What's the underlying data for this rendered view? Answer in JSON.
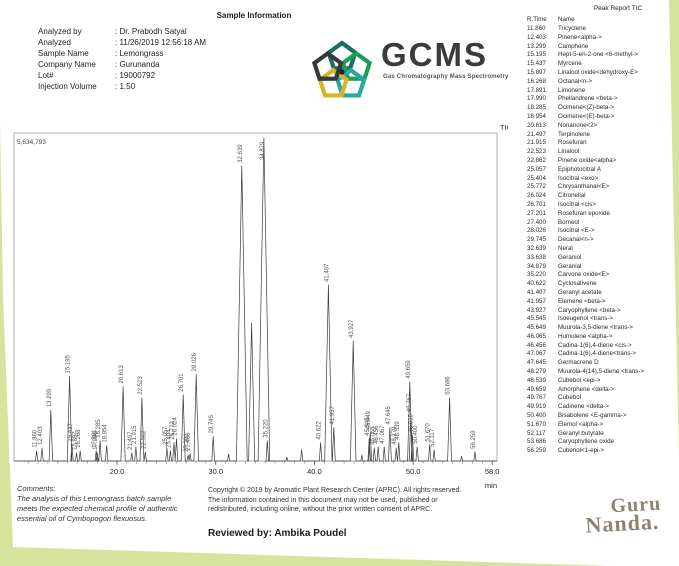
{
  "page": {
    "bg_color": "#d6e39c",
    "paper_color": "#ffffff"
  },
  "sample_info": {
    "title": "Sample Information",
    "fields": [
      {
        "label": "Analyzed by",
        "value": "Dr. Prabodh Satyal"
      },
      {
        "label": "Analyzed",
        "value": "11/26/2019 12:56:18 AM"
      },
      {
        "label": "Sample Name",
        "value": "Lemongrass"
      },
      {
        "label": "Company Name",
        "value": "Gurunanda"
      },
      {
        "label": "Lot#",
        "value": "19000792"
      },
      {
        "label": "Injection Volume",
        "value": "1.50"
      }
    ]
  },
  "gcms_logo": {
    "text": "GCMS",
    "subtitle": "Gas Chromatography Mass Spectrometry",
    "petal_colors": [
      "#1a6f5f",
      "#1f9d58",
      "#2ba7a1",
      "#d8b42c",
      "#35393e"
    ],
    "center_dot_color": "#222222"
  },
  "peak_report": {
    "title": "Peak Report TIC",
    "col_time": "R.Time",
    "col_name": "Name",
    "rows": [
      [
        "11.860",
        "Tricyclene"
      ],
      [
        "12.403",
        "Pinene<alpha->"
      ],
      [
        "13.299",
        "Camphene"
      ],
      [
        "15.195",
        "Hept-5-en-2-one <6-methyl->"
      ],
      [
        "15.437",
        "Myrcene"
      ],
      [
        "15.897",
        "Linalool oxide<dehydroxy-E>"
      ],
      [
        "16.268",
        "Octanal<n->"
      ],
      [
        "17.891",
        "Limonene"
      ],
      [
        "17.990",
        "Phellandrene <beta->"
      ],
      [
        "18.285",
        "Ocimene<(Z)-beta->"
      ],
      [
        "18.954",
        "Ocimene<(E)-beta->"
      ],
      [
        "20.613",
        "Nonanone<2>"
      ],
      [
        "21.497",
        "Terpinolene"
      ],
      [
        "21.915",
        "Rosefuran"
      ],
      [
        "22.523",
        "Linalool"
      ],
      [
        "22.862",
        "Pinene oxide<alpha>"
      ],
      [
        "25.057",
        "Epiphotocitral A"
      ],
      [
        "25.404",
        "Isocitral <exo>"
      ],
      [
        "25.772",
        "Chrysanthanal<E>"
      ],
      [
        "26.024",
        "Citronellal"
      ],
      [
        "26.701",
        "Isocitral <cis>"
      ],
      [
        "27.201",
        "Rosefuran epoxide"
      ],
      [
        "27.400",
        "Borneol"
      ],
      [
        "28.026",
        "Isocitral <E->"
      ],
      [
        "29.745",
        "Decanal<n->"
      ],
      [
        "32.639",
        "Neral"
      ],
      [
        "33.638",
        "Geraniol"
      ],
      [
        "34.879",
        "Geranial"
      ],
      [
        "35.220",
        "Carvone oxide<E>"
      ],
      [
        "40.622",
        "Cyclosativene"
      ],
      [
        "41.407",
        "Geranyl acetate"
      ],
      [
        "41.957",
        "Elemene <beta->"
      ],
      [
        "43.927",
        "Caryophyllene <beta->"
      ],
      [
        "45.545",
        "Isoeugenol <trans->"
      ],
      [
        "45.649",
        "Muurola-3,5-diene <trans->"
      ],
      [
        "46.065",
        "Humulene <alpha->"
      ],
      [
        "46.456",
        "Cadina-1(6),4-diene <cis->"
      ],
      [
        "47.067",
        "Cadina-1(6),4-diene<trans->"
      ],
      [
        "47.645",
        "Germacrene D"
      ],
      [
        "48.279",
        "Muurola-4(14),5-diene <trans->"
      ],
      [
        "48.539",
        "Cubebol <epi->"
      ],
      [
        "49.659",
        "Amorphene <delta->"
      ],
      [
        "49.767",
        "Cubebol"
      ],
      [
        "49.919",
        "Cadinene <delta->"
      ],
      [
        "50.400",
        "Bisabolene <E-gamma->"
      ],
      [
        "51.670",
        "Elemol <alpha->"
      ],
      [
        "52.117",
        "Geranyl butyrate"
      ],
      [
        "53.686",
        "Caryophyllene oxide"
      ],
      [
        "56.259",
        "Cubenol<1-epi->"
      ]
    ]
  },
  "chart_data": {
    "type": "line",
    "title": "TIC",
    "full_scale_label": "5,634,793",
    "full_scale_value": 5634793,
    "xlabel": "min",
    "x_ticks": [
      20.0,
      30.0,
      40.0,
      50.0,
      58.0
    ],
    "x_range": [
      9.6,
      58.0
    ],
    "grid": false,
    "peaks": [
      {
        "rt": 11.86,
        "rel": 0.031,
        "label": "11.860"
      },
      {
        "rt": 12.403,
        "rel": 0.04,
        "label": "12.403"
      },
      {
        "rt": 13.299,
        "rel": 0.155,
        "label": "13.299"
      },
      {
        "rt": 15.195,
        "rel": 0.258,
        "label": "15.195"
      },
      {
        "rt": 15.437,
        "rel": 0.05,
        "label": "15.437"
      },
      {
        "rt": 15.897,
        "rel": 0.025,
        "label": "15.897"
      },
      {
        "rt": 16.268,
        "rel": 0.031,
        "label": "16.268"
      },
      {
        "rt": 17.891,
        "rel": 0.031,
        "label": "17.891"
      },
      {
        "rt": 17.99,
        "rel": 0.025,
        "label": "17.990"
      },
      {
        "rt": 18.285,
        "rel": 0.062,
        "label": "18.285"
      },
      {
        "rt": 18.954,
        "rel": 0.047,
        "label": "18.954"
      },
      {
        "rt": 20.613,
        "rel": 0.227,
        "label": "20.613"
      },
      {
        "rt": 21.497,
        "rel": 0.025,
        "label": "21.497"
      },
      {
        "rt": 21.915,
        "rel": 0.043,
        "label": "21.915"
      },
      {
        "rt": 22.523,
        "rel": 0.193,
        "label": "22.523"
      },
      {
        "rt": 22.862,
        "rel": 0.028,
        "label": "22.862"
      },
      {
        "rt": 25.057,
        "rel": 0.04,
        "label": "25.057"
      },
      {
        "rt": 25.404,
        "rel": 0.031,
        "label": "25.404"
      },
      {
        "rt": 25.772,
        "rel": 0.056,
        "label": "25.772"
      },
      {
        "rt": 26.024,
        "rel": 0.068,
        "label": "26.024"
      },
      {
        "rt": 26.701,
        "rel": 0.202,
        "label": "26.701"
      },
      {
        "rt": 27.201,
        "rel": 0.019,
        "label": "27.201"
      },
      {
        "rt": 27.4,
        "rel": 0.022,
        "label": "27.400"
      },
      {
        "rt": 28.026,
        "rel": 0.264,
        "label": "28.026"
      },
      {
        "rt": 29.745,
        "rel": 0.075,
        "label": "29.745"
      },
      {
        "rt": 31.3,
        "rel": 0.022,
        "label": ""
      },
      {
        "rt": 32.639,
        "rel": 0.9,
        "label": "32.639"
      },
      {
        "rt": 33.638,
        "rel": 0.42,
        "label": ""
      },
      {
        "rt": 34.879,
        "rel": 0.985,
        "label": "34.879"
      },
      {
        "rt": 35.22,
        "rel": 0.062,
        "label": "35.220"
      },
      {
        "rt": 37.2,
        "rel": 0.012,
        "label": ""
      },
      {
        "rt": 38.7,
        "rel": 0.035,
        "label": ""
      },
      {
        "rt": 40.622,
        "rel": 0.056,
        "label": "40.622"
      },
      {
        "rt": 41.407,
        "rel": 0.537,
        "label": "41.407"
      },
      {
        "rt": 41.957,
        "rel": 0.102,
        "label": "41.957"
      },
      {
        "rt": 43.927,
        "rel": 0.366,
        "label": "43.927"
      },
      {
        "rt": 44.8,
        "rel": 0.018,
        "label": ""
      },
      {
        "rt": 45.545,
        "rel": 0.068,
        "label": "45.545"
      },
      {
        "rt": 45.649,
        "rel": 0.087,
        "label": "45.649"
      },
      {
        "rt": 46.065,
        "rel": 0.04,
        "label": "46.065"
      },
      {
        "rt": 46.456,
        "rel": 0.043,
        "label": "46.456"
      },
      {
        "rt": 47.067,
        "rel": 0.043,
        "label": "47.067"
      },
      {
        "rt": 47.645,
        "rel": 0.102,
        "label": "47.645"
      },
      {
        "rt": 48.279,
        "rel": 0.04,
        "label": "48.279"
      },
      {
        "rt": 48.539,
        "rel": 0.056,
        "label": "48.539"
      },
      {
        "rt": 49.659,
        "rel": 0.242,
        "label": "49.659"
      },
      {
        "rt": 49.767,
        "rel": 0.14,
        "label": "49.767"
      },
      {
        "rt": 49.919,
        "rel": 0.078,
        "label": "49.919"
      },
      {
        "rt": 50.4,
        "rel": 0.043,
        "label": "50.400"
      },
      {
        "rt": 51.67,
        "rel": 0.05,
        "label": "51.670"
      },
      {
        "rt": 52.117,
        "rel": 0.034,
        "label": "52.117"
      },
      {
        "rt": 53.686,
        "rel": 0.193,
        "label": "53.686"
      },
      {
        "rt": 54.9,
        "rel": 0.015,
        "label": ""
      },
      {
        "rt": 56.259,
        "rel": 0.028,
        "label": "56.259"
      }
    ]
  },
  "comments": {
    "heading": "Comments:",
    "lines": [
      "The analysis of this Lemongrass batch sample",
      "meets the expected chemical profile of authentic",
      "essential oil of Cymbopogon flexuosus."
    ]
  },
  "copyright_lines": [
    "Copyright © 2019 by Aromatic Plant Research Center (APRC). All rights reserved.",
    "The information contained in this document may not be used, published or",
    "redistributed, including online, without the prior written consent of APRC."
  ],
  "reviewed_by": "Reviewed by: Ambika Poudel",
  "brand": {
    "line1": "Guru",
    "line2": "Nanda."
  }
}
